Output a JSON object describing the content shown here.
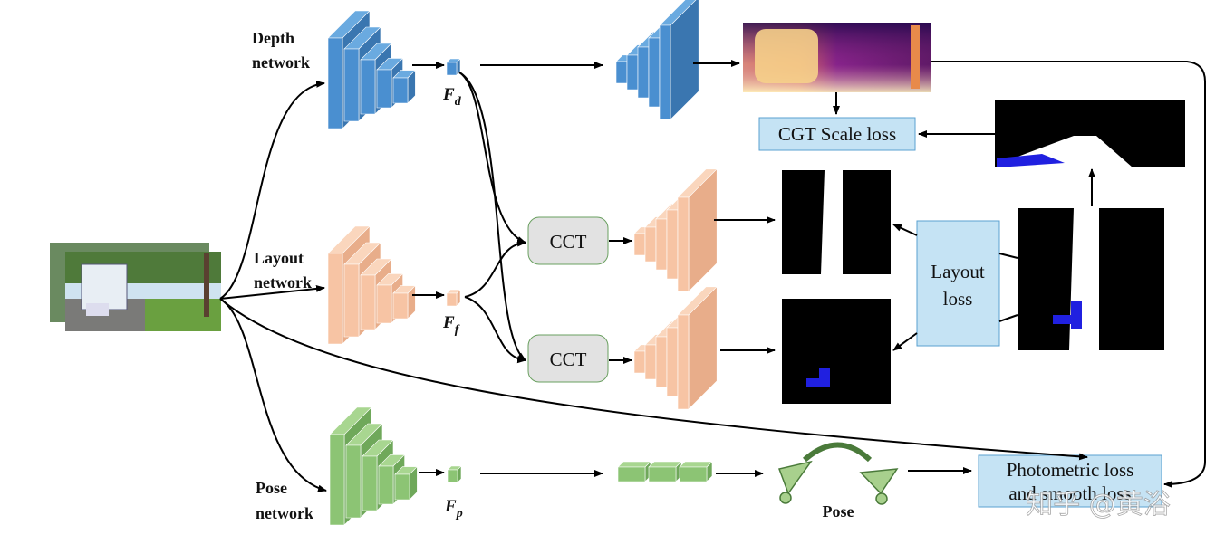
{
  "networks": [
    {
      "lines": [
        "Depth",
        "network"
      ],
      "feature": {
        "symbol": "F",
        "subscript": "d"
      }
    },
    {
      "lines": [
        "Layout",
        "network"
      ],
      "feature": {
        "symbol": "F",
        "subscript": "f"
      }
    },
    {
      "lines": [
        "Pose",
        "network"
      ],
      "feature": {
        "symbol": "F",
        "subscript": "p"
      }
    }
  ],
  "modules": [
    "CCT",
    "CCT"
  ],
  "losses": {
    "cgt_scale": "CGT Scale loss",
    "layout": [
      "Layout",
      "loss"
    ],
    "photometric": [
      "Photometric loss",
      "and smooth loss"
    ]
  },
  "pose_label": "Pose",
  "watermark": "知乎 @黄浴"
}
